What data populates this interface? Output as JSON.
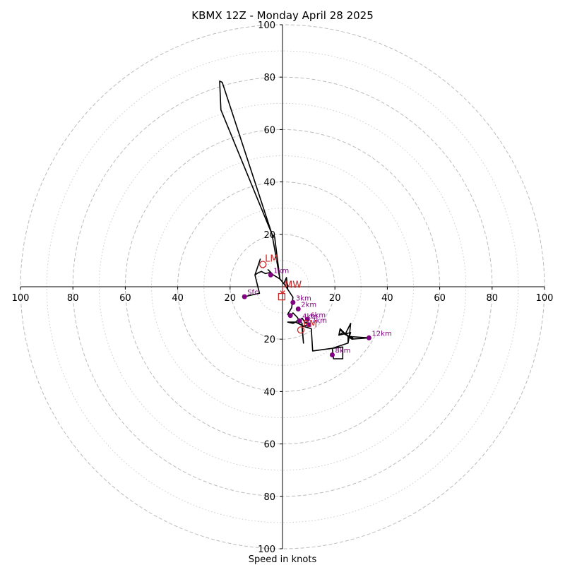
{
  "chart_data": {
    "type": "line",
    "title": "KBMX 12Z - Monday April 28 2025",
    "xlabel": "Speed in knots",
    "ylabel": "",
    "xlim": [
      -100,
      100
    ],
    "ylim": [
      -100,
      100
    ],
    "rings_major": [
      20,
      40,
      60,
      80,
      100
    ],
    "rings_minor": [
      10,
      30,
      50,
      70,
      90
    ],
    "x_ticks": [
      {
        "value": -100,
        "label": "100"
      },
      {
        "value": -80,
        "label": "80"
      },
      {
        "value": -60,
        "label": "60"
      },
      {
        "value": -40,
        "label": "40"
      },
      {
        "value": -20,
        "label": "20"
      },
      {
        "value": 20,
        "label": "20"
      },
      {
        "value": 40,
        "label": "40"
      },
      {
        "value": 60,
        "label": "60"
      },
      {
        "value": 80,
        "label": "80"
      },
      {
        "value": 100,
        "label": "100"
      }
    ],
    "y_ticks": [
      {
        "value": 100,
        "label": "100"
      },
      {
        "value": 80,
        "label": "80"
      },
      {
        "value": 60,
        "label": "60"
      },
      {
        "value": 40,
        "label": "40"
      },
      {
        "value": 20,
        "label": "20"
      },
      {
        "value": -20,
        "label": "20"
      },
      {
        "value": -40,
        "label": "40"
      },
      {
        "value": -60,
        "label": "60"
      },
      {
        "value": -80,
        "label": "80"
      },
      {
        "value": -100,
        "label": "100"
      }
    ],
    "grid": true,
    "colors": {
      "trace": "#000000",
      "height": "#800080",
      "motion": "#cc2222",
      "grid": "#bbbbbb"
    },
    "series": [
      {
        "points": [
          [
            -14.5,
            -3.8
          ],
          [
            -11,
            -3
          ],
          [
            -8.8,
            -2.5
          ],
          [
            -10.5,
            4.5
          ],
          [
            -8.5,
            10.5
          ],
          [
            -10.5,
            4.5
          ],
          [
            -9,
            5.5
          ],
          [
            -8,
            5.8
          ],
          [
            -6.5,
            5
          ],
          [
            -4.5,
            5.5
          ],
          [
            -5.5,
            6.5
          ],
          [
            -3.5,
            4.5
          ],
          [
            -1,
            3
          ],
          [
            0.5,
            1.2
          ],
          [
            2,
            -1
          ],
          [
            4,
            -4
          ],
          [
            3.5,
            -8
          ],
          [
            2,
            -10.5
          ],
          [
            3,
            -11.5
          ],
          [
            4,
            -10
          ],
          [
            5.5,
            -11.5
          ],
          [
            6.5,
            -13
          ],
          [
            7.5,
            -12
          ],
          [
            8.5,
            -13.5
          ],
          [
            10,
            -14
          ],
          [
            9.5,
            -15
          ],
          [
            10,
            -14.5
          ],
          [
            8,
            -15
          ],
          [
            5,
            -13.5
          ],
          [
            2,
            -13.5
          ],
          [
            4,
            -14
          ],
          [
            5,
            -13.5
          ],
          [
            6,
            -12.5
          ],
          [
            7.5,
            -14
          ],
          [
            7.5,
            -16
          ],
          [
            8,
            -21.5
          ],
          [
            7.5,
            -15
          ],
          [
            11,
            -16
          ],
          [
            11.5,
            -24.5
          ],
          [
            19,
            -23.5
          ],
          [
            19.5,
            -27.5
          ],
          [
            23,
            -27.5
          ],
          [
            23,
            -23
          ],
          [
            19,
            -23.5
          ],
          [
            25,
            -21.5
          ],
          [
            25,
            -19
          ],
          [
            24,
            -18
          ],
          [
            26,
            -14
          ],
          [
            25.5,
            -19
          ],
          [
            33,
            -19.5
          ],
          [
            25.5,
            -19
          ],
          [
            23,
            -17.5
          ],
          [
            21.5,
            -18.5
          ],
          [
            22,
            -16
          ],
          [
            24,
            -18
          ],
          [
            26,
            -17.5
          ],
          [
            25.5,
            -19
          ],
          [
            27,
            -20
          ],
          [
            26.5,
            -19
          ],
          [
            25.5,
            -19
          ],
          [
            25,
            -21.5
          ],
          [
            25,
            -19
          ],
          [
            26.5,
            -20
          ],
          [
            33,
            -19.5
          ],
          [
            25.5,
            -19
          ],
          [
            23.5,
            -18
          ],
          [
            21.5,
            -18.5
          ],
          [
            22,
            -16.5
          ],
          [
            25.5,
            -19
          ],
          [
            25,
            -19
          ]
        ]
      }
    ],
    "upper_trace": [
      [
        -1,
        3
      ],
      [
        -3,
        19
      ],
      [
        -4,
        20
      ],
      [
        -23,
        78
      ],
      [
        -24,
        78.5
      ],
      [
        -23.5,
        67.5
      ],
      [
        -4,
        20
      ],
      [
        -1,
        3
      ],
      [
        0.5,
        1.2
      ],
      [
        1.5,
        3.5
      ],
      [
        2,
        -1
      ]
    ],
    "height_markers": [
      {
        "x": -14.5,
        "y": -3.8,
        "label": "Sfc"
      },
      {
        "x": -4.5,
        "y": 4.5,
        "label": "1km"
      },
      {
        "x": 4,
        "y": -6,
        "label": "3km"
      },
      {
        "x": 6,
        "y": -8.5,
        "label": "2km"
      },
      {
        "x": 6.5,
        "y": -13,
        "label": "4km"
      },
      {
        "x": 9.5,
        "y": -12.5,
        "label": "6km"
      },
      {
        "x": 10,
        "y": -14.5,
        "label": "7km"
      },
      {
        "x": 3,
        "y": -11,
        "label": ""
      },
      {
        "x": 19,
        "y": -26,
        "label": "8km"
      },
      {
        "x": 33,
        "y": -19.5,
        "label": "12km"
      }
    ],
    "storm_motion_markers": [
      {
        "x": -7.5,
        "y": 8.5,
        "label": "LM",
        "shape": "circle"
      },
      {
        "x": 7,
        "y": -16.5,
        "label": "RM",
        "shape": "circle"
      },
      {
        "x": -0.3,
        "y": -3.8,
        "label": "",
        "shape": "square"
      },
      {
        "x": 0,
        "y": -1.5,
        "label": "MW",
        "shape": "arrow"
      }
    ]
  }
}
